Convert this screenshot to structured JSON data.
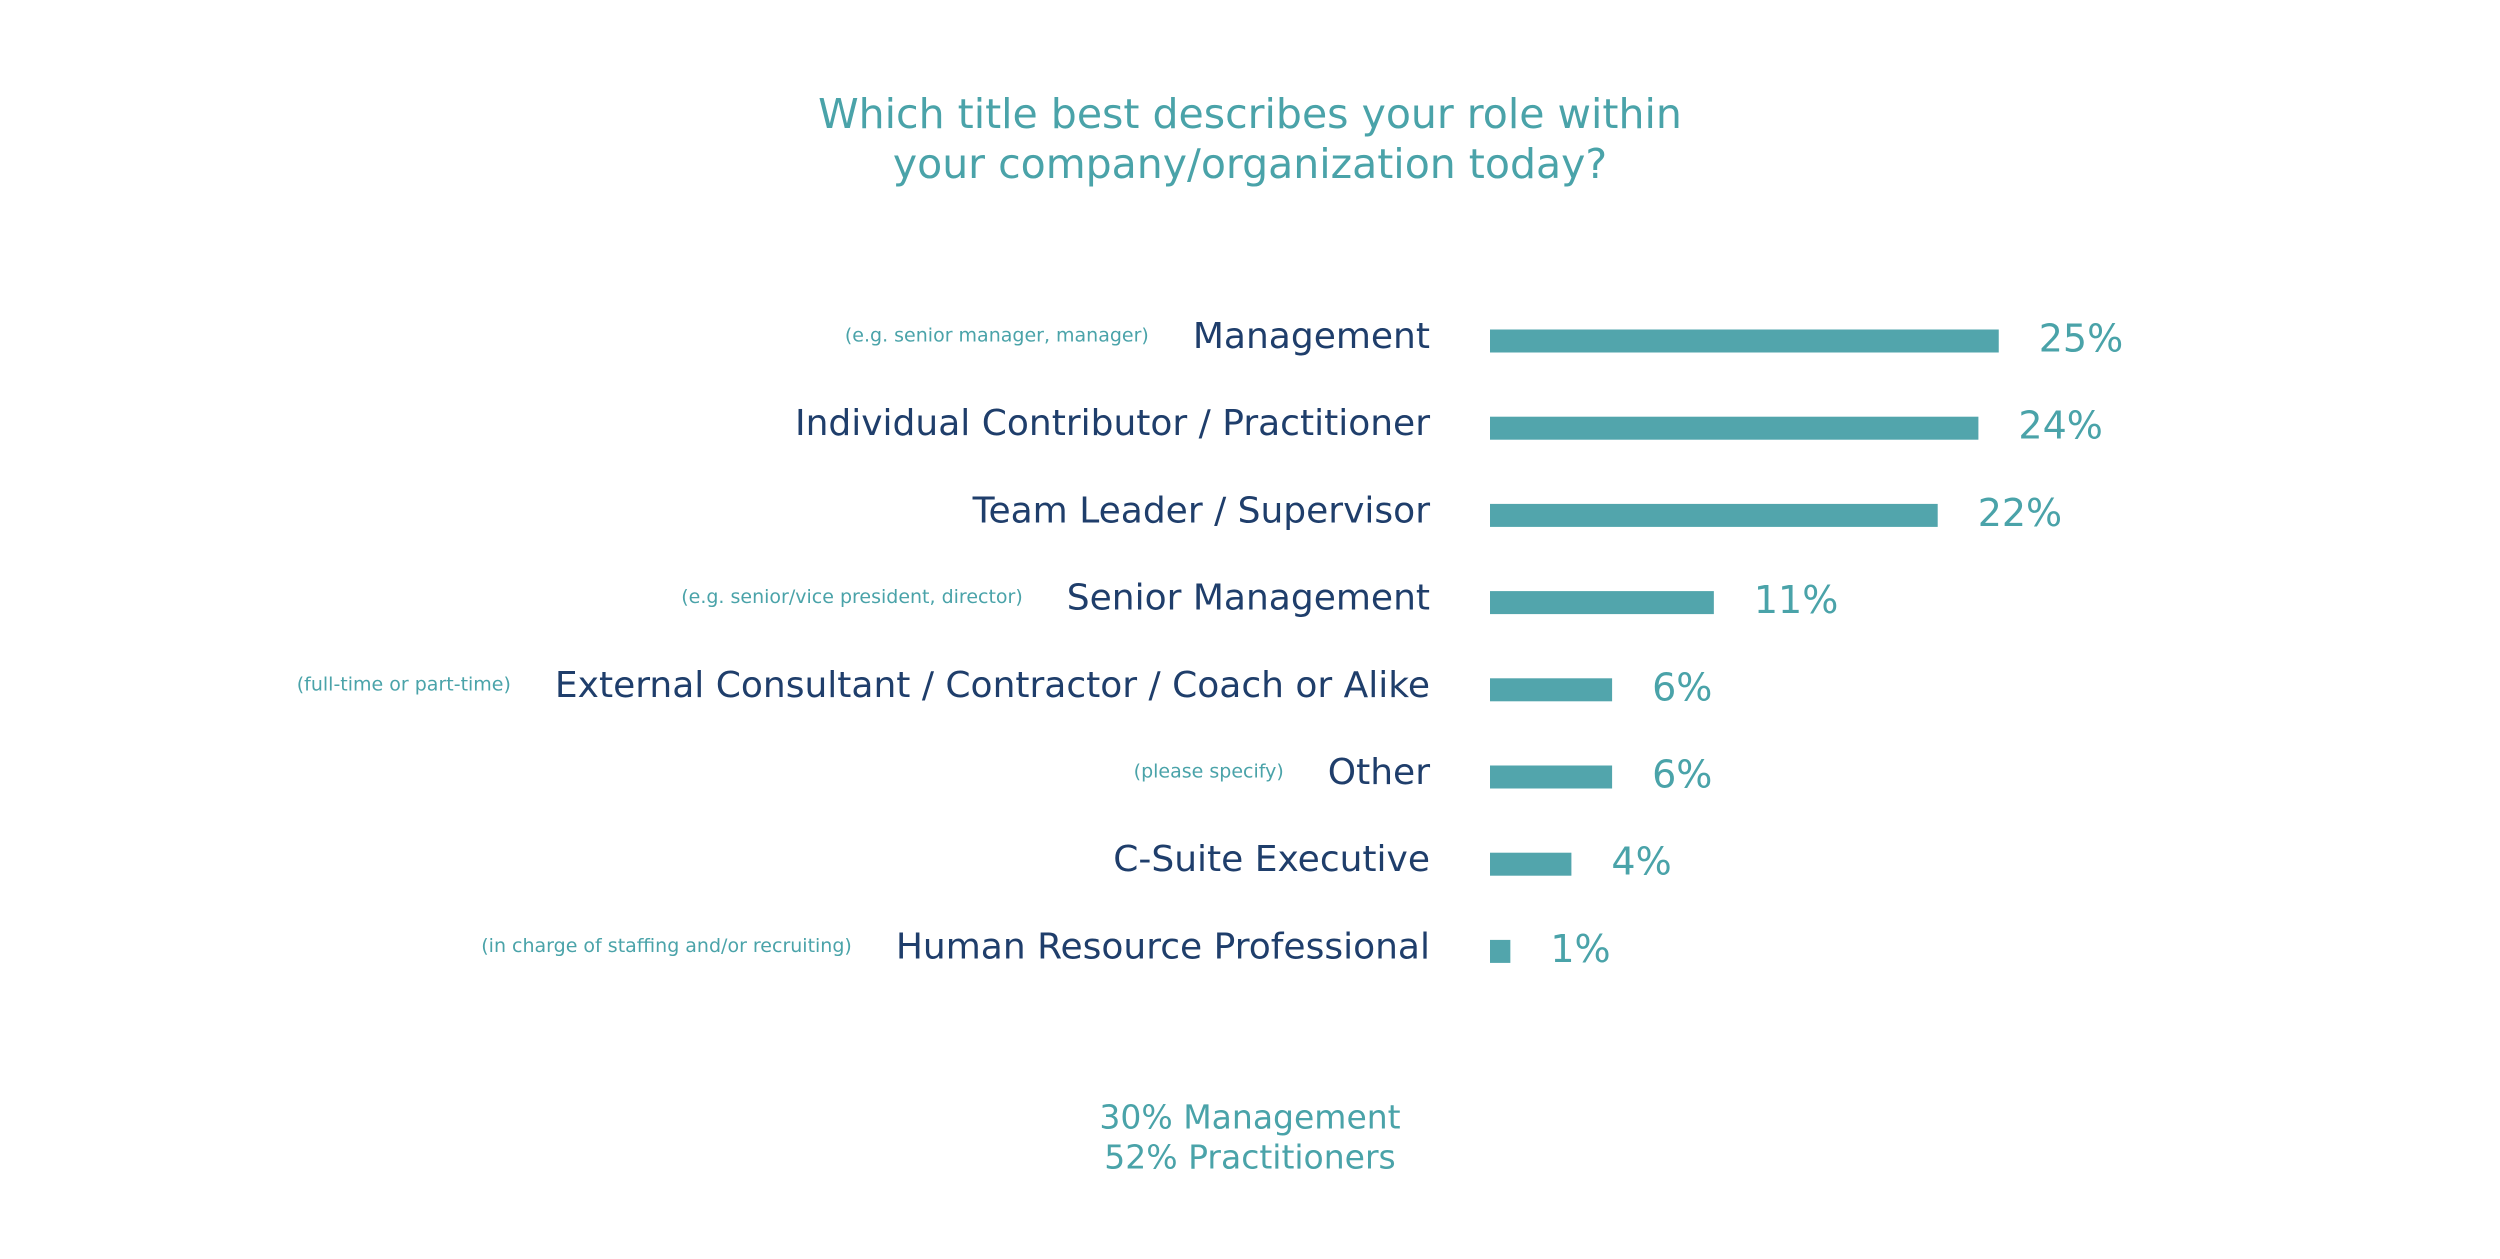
{
  "chart_data": {
    "type": "bar",
    "orientation": "horizontal",
    "title": [
      "Which title best describes your role within",
      "your company/organization today?"
    ],
    "categories": [
      "Management",
      "Individual Contributor / Practitioner",
      "Team Leader / Supervisor",
      "Senior Management",
      "External Consultant / Contractor / Coach or Alike",
      "Other",
      "C-Suite Executive",
      "Human Resource Professional"
    ],
    "sublabels": [
      "(e.g. senior manager, manager)",
      null,
      null,
      "(e.g. senior/vice president, director)",
      "(full-time or part-time)",
      "(please specify)",
      null,
      "(in charge of staffing and/or recruiting)"
    ],
    "values": [
      25,
      24,
      22,
      11,
      6,
      6,
      4,
      1
    ],
    "value_labels": [
      "25%",
      "24%",
      "22%",
      "11%",
      "6%",
      "6%",
      "4%",
      "1%"
    ],
    "color": "#52a5ac",
    "notes": [
      "30% Management",
      "52% Practitioners"
    ]
  }
}
